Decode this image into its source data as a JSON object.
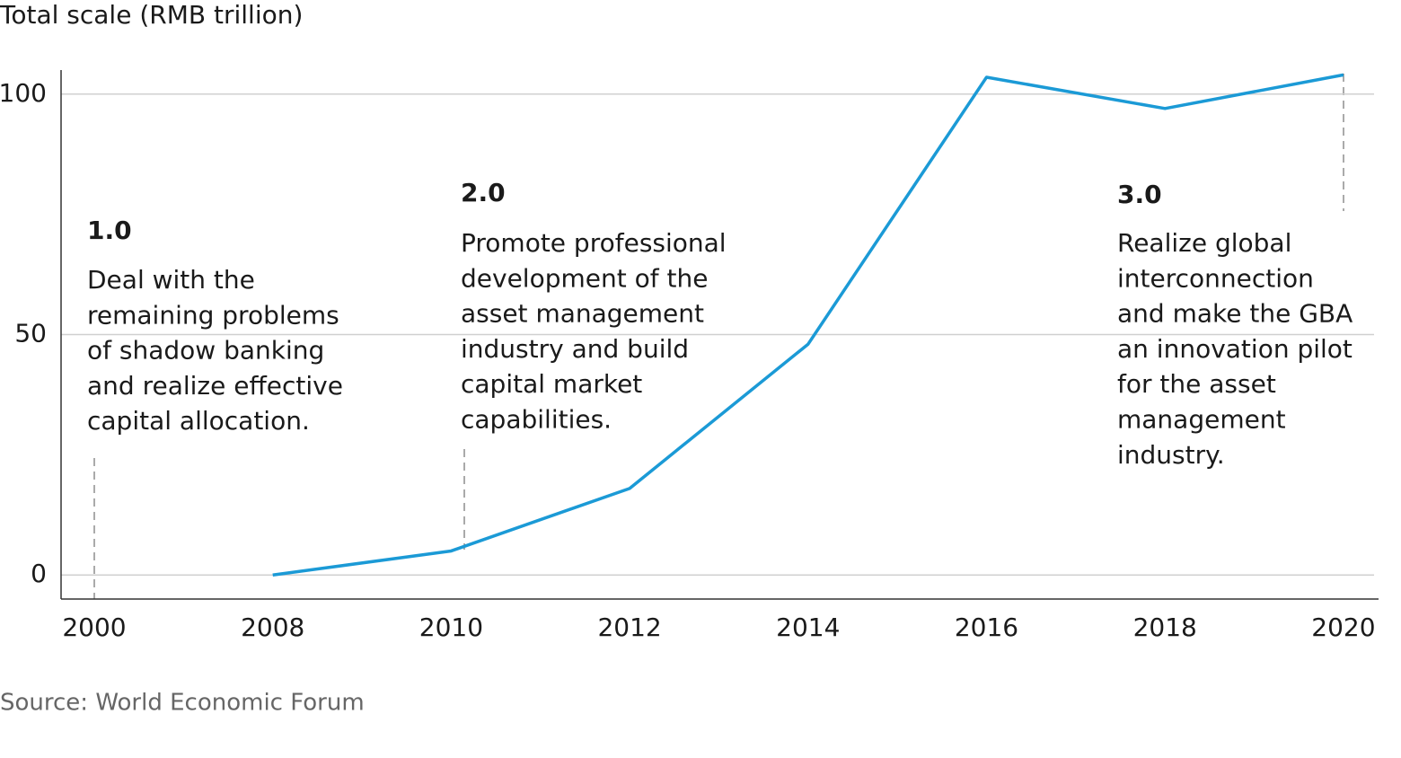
{
  "chart_data": {
    "type": "line",
    "title": "Total scale (RMB trillion)",
    "source": "Source: World Economic Forum",
    "categories": [
      "2000",
      "2008",
      "2010",
      "2012",
      "2014",
      "2016",
      "2018",
      "2020"
    ],
    "series": [
      {
        "name": "Total scale",
        "color": "#1b9ad6",
        "values": [
          null,
          0,
          5,
          18,
          48,
          103.5,
          97,
          104
        ]
      }
    ],
    "ylim": [
      -5,
      105
    ],
    "yticks": [
      0,
      50,
      100
    ],
    "grid": true,
    "annotations": [
      {
        "heading": "1.0",
        "lines": [
          "Deal with the",
          "remaining problems",
          "of shadow banking",
          "and realize effective",
          "capital allocation."
        ]
      },
      {
        "heading": "2.0",
        "lines": [
          "Promote professional",
          "development of the",
          "asset management",
          "industry and build",
          "capital market",
          "capabilities."
        ]
      },
      {
        "heading": "3.0",
        "lines": [
          "Realize global",
          "interconnection",
          "and make the GBA",
          "an innovation pilot",
          "for the asset",
          "management",
          "industry."
        ]
      }
    ]
  }
}
